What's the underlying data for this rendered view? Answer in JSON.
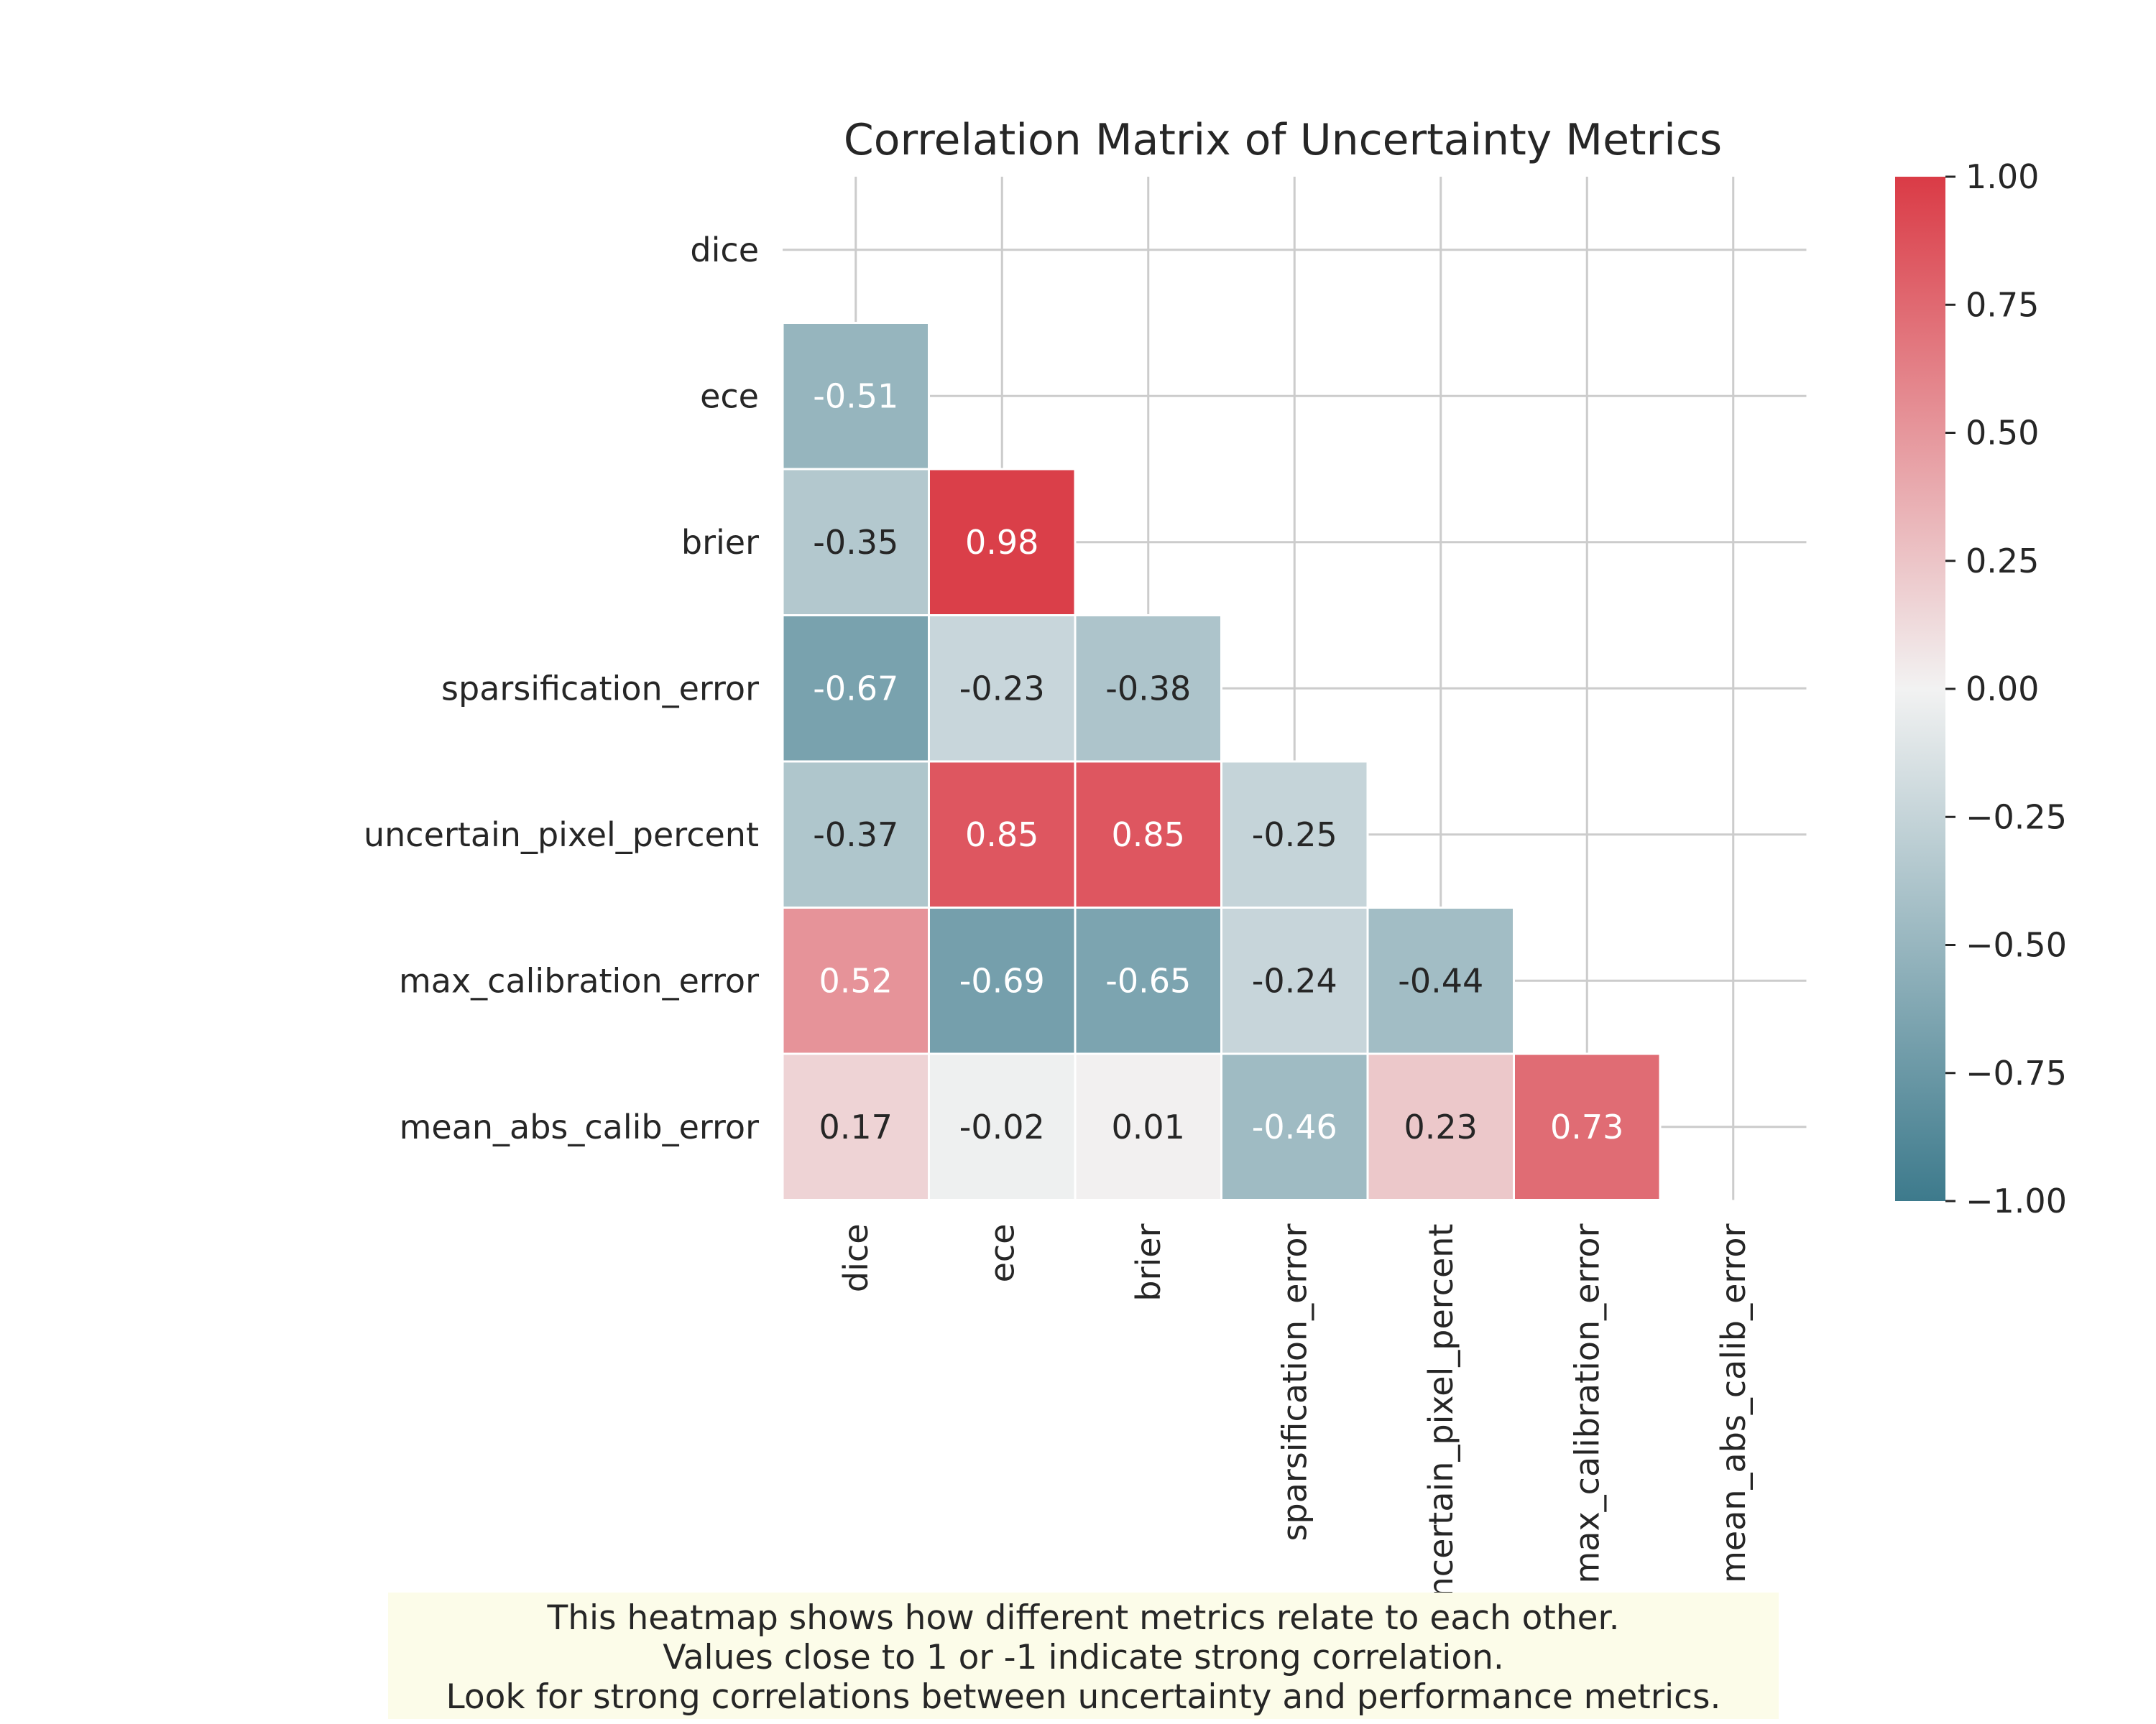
{
  "chart_data": {
    "type": "heatmap",
    "title": "Correlation Matrix of Uncertainty Metrics",
    "variables": [
      "dice",
      "ece",
      "brier",
      "sparsification_error",
      "uncertain_pixel_percent",
      "max_calibration_error",
      "mean_abs_calib_error"
    ],
    "mask": "upper-triangle-including-diagonal",
    "matrix": [
      [
        null,
        null,
        null,
        null,
        null,
        null,
        null
      ],
      [
        -0.51,
        null,
        null,
        null,
        null,
        null,
        null
      ],
      [
        -0.35,
        0.98,
        null,
        null,
        null,
        null,
        null
      ],
      [
        -0.67,
        -0.23,
        -0.38,
        null,
        null,
        null,
        null
      ],
      [
        -0.37,
        0.85,
        0.85,
        -0.25,
        null,
        null,
        null
      ],
      [
        0.52,
        -0.69,
        -0.65,
        -0.24,
        -0.44,
        null,
        null
      ],
      [
        0.17,
        -0.02,
        0.01,
        -0.46,
        0.23,
        0.73,
        null
      ]
    ],
    "colorbar": {
      "range": [
        -1.0,
        1.0
      ],
      "ticks": [
        1.0,
        0.75,
        0.5,
        0.25,
        0.0,
        -0.25,
        -0.5,
        -0.75,
        -1.0
      ],
      "tick_labels": [
        "1.00",
        "0.75",
        "0.50",
        "0.25",
        "0.00",
        "−0.25",
        "−0.50",
        "−0.75",
        "−1.00"
      ],
      "colormap": "diverging",
      "low_color": "#3d7a8c",
      "mid_color": "#f2f2f2",
      "high_color": "#da3b46"
    },
    "grid": true,
    "legend": "colorbar-right",
    "annotations": true
  },
  "caption": {
    "lines": [
      "This heatmap shows how different metrics relate to each other.",
      "Values close to 1 or -1 indicate strong correlation.",
      "Look for strong correlations between uncertainty and performance metrics."
    ]
  }
}
